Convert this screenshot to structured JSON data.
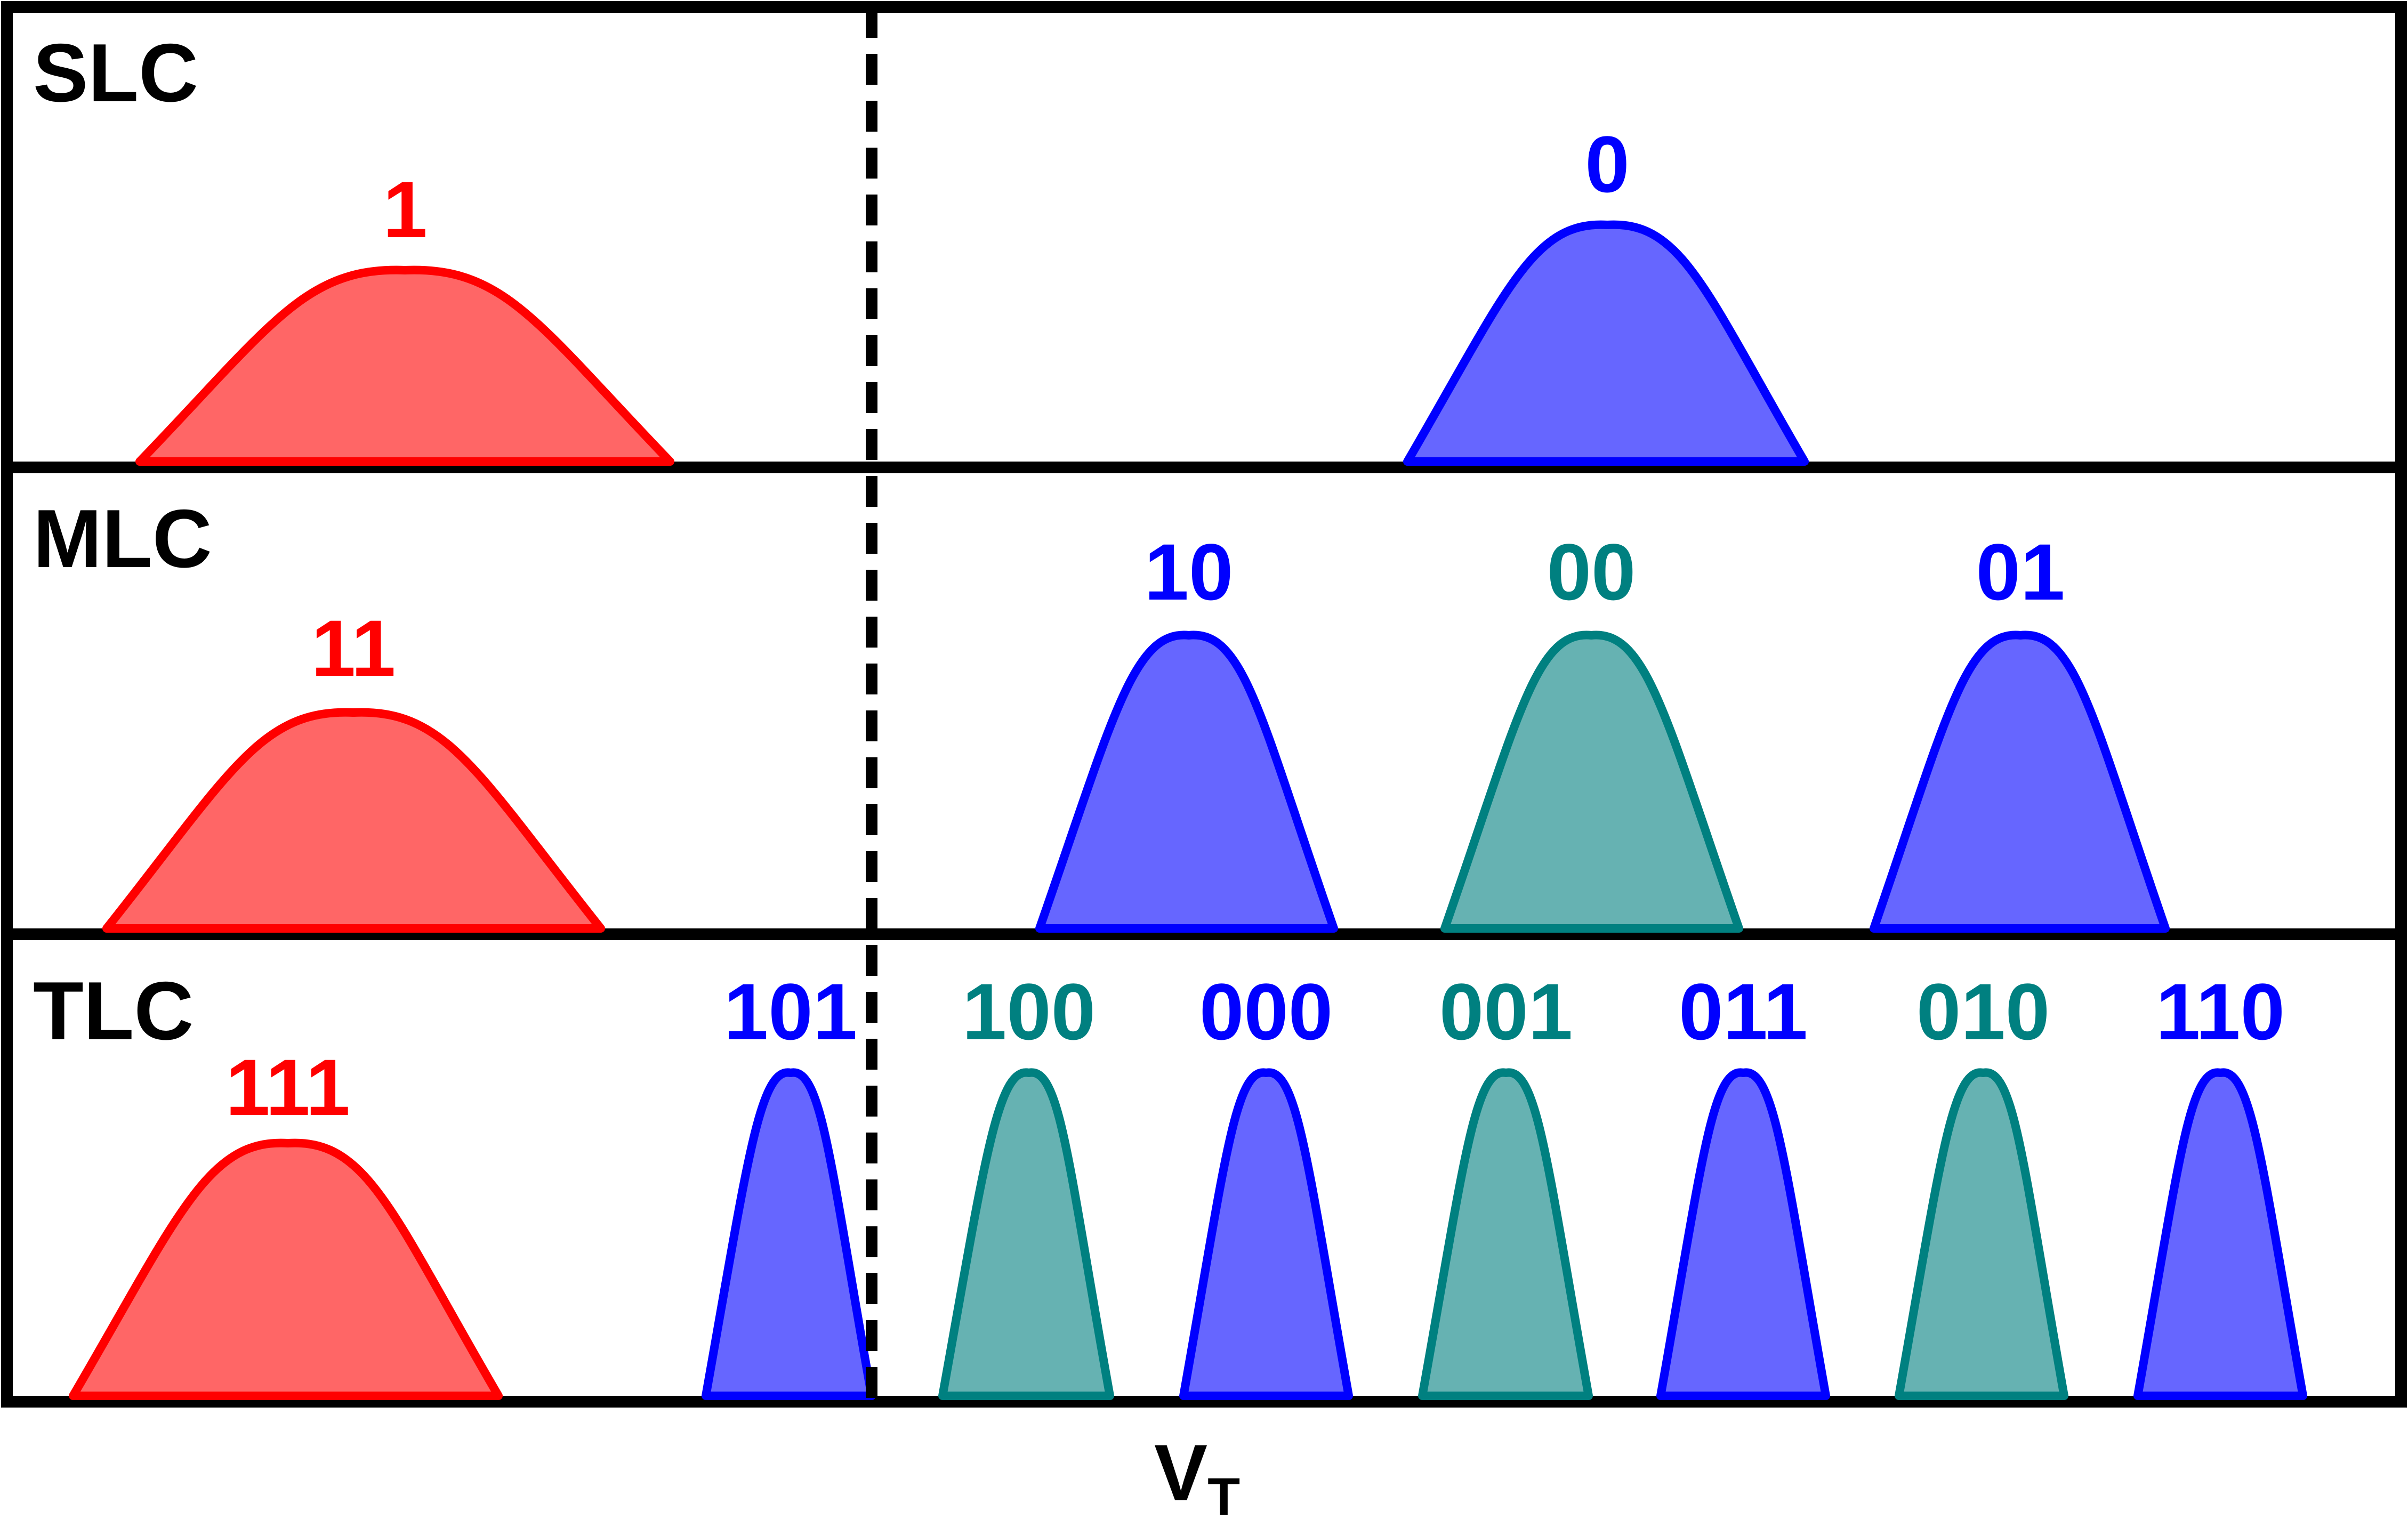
{
  "colors": {
    "erased_line": "#ff0000",
    "erased_fill": "#ff6666",
    "blue_line": "#0000ff",
    "blue_fill": "#6666ff",
    "teal_line": "#008080",
    "teal_fill": "#66b2b2",
    "frame": "#000000"
  },
  "axis_label": {
    "main": "V",
    "sub": "T"
  },
  "panels": [
    {
      "label": "SLC",
      "states": [
        {
          "code": "1",
          "color": "erased"
        },
        {
          "code": "0",
          "color": "blue"
        }
      ]
    },
    {
      "label": "MLC",
      "states": [
        {
          "code": "11",
          "color": "erased"
        },
        {
          "code": "10",
          "color": "blue"
        },
        {
          "code": "00",
          "color": "teal"
        },
        {
          "code": "01",
          "color": "blue"
        }
      ]
    },
    {
      "label": "TLC",
      "states": [
        {
          "code": "111",
          "color": "erased"
        },
        {
          "code": "101",
          "color": "blue"
        },
        {
          "code": "100",
          "color": "teal"
        },
        {
          "code": "000",
          "color": "blue"
        },
        {
          "code": "001",
          "color": "teal"
        },
        {
          "code": "011",
          "color": "blue"
        },
        {
          "code": "010",
          "color": "teal"
        },
        {
          "code": "110",
          "color": "blue"
        }
      ]
    }
  ]
}
